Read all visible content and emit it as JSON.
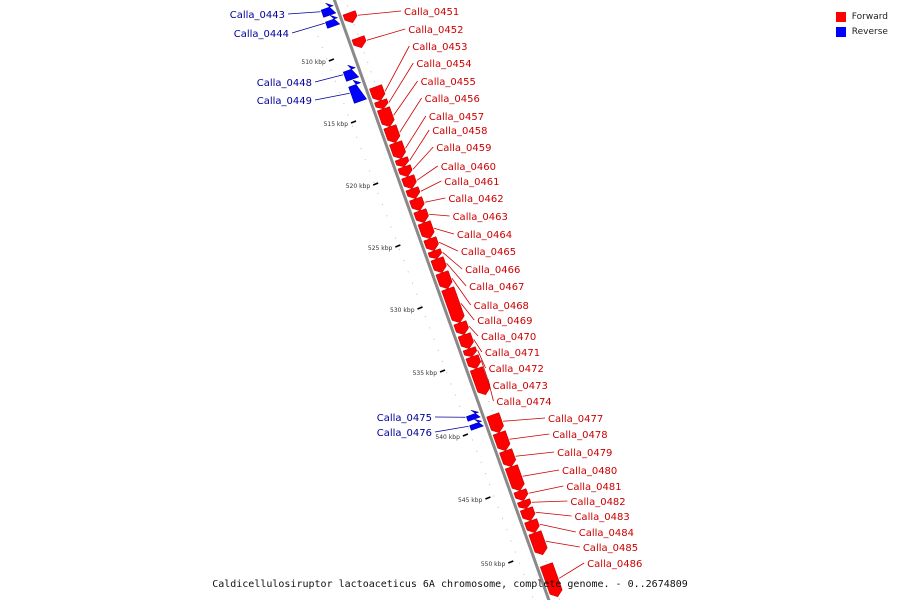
{
  "legend": {
    "forward_label": "Forward",
    "reverse_label": "Reverse",
    "forward_color": "#ff0000",
    "reverse_color": "#0000ff"
  },
  "caption": "Caldicellulosiruptor lactoaceticus 6A chromosome, complete genome. - 0..2674809",
  "colors": {
    "backbone": "#8a8a8a",
    "forward_label_text": "#cc0000",
    "reverse_label_text": "#000099",
    "tick": "#000000"
  },
  "ticks": [
    "510 kbp",
    "515 kbp",
    "520 kbp",
    "525 kbp",
    "530 kbp",
    "535 kbp",
    "540 kbp",
    "545 kbp",
    "550 kbp"
  ],
  "genes": [
    {
      "id": "Calla_0443",
      "strand": "reverse"
    },
    {
      "id": "Calla_0444",
      "strand": "reverse"
    },
    {
      "id": "Calla_0448",
      "strand": "reverse"
    },
    {
      "id": "Calla_0449",
      "strand": "reverse"
    },
    {
      "id": "Calla_0451",
      "strand": "forward"
    },
    {
      "id": "Calla_0452",
      "strand": "forward"
    },
    {
      "id": "Calla_0453",
      "strand": "forward"
    },
    {
      "id": "Calla_0454",
      "strand": "forward"
    },
    {
      "id": "Calla_0455",
      "strand": "forward"
    },
    {
      "id": "Calla_0456",
      "strand": "forward"
    },
    {
      "id": "Calla_0457",
      "strand": "forward"
    },
    {
      "id": "Calla_0458",
      "strand": "forward"
    },
    {
      "id": "Calla_0459",
      "strand": "forward"
    },
    {
      "id": "Calla_0460",
      "strand": "forward"
    },
    {
      "id": "Calla_0461",
      "strand": "forward"
    },
    {
      "id": "Calla_0462",
      "strand": "forward"
    },
    {
      "id": "Calla_0463",
      "strand": "forward"
    },
    {
      "id": "Calla_0464",
      "strand": "forward"
    },
    {
      "id": "Calla_0465",
      "strand": "forward"
    },
    {
      "id": "Calla_0466",
      "strand": "forward"
    },
    {
      "id": "Calla_0467",
      "strand": "forward"
    },
    {
      "id": "Calla_0468",
      "strand": "forward"
    },
    {
      "id": "Calla_0469",
      "strand": "forward"
    },
    {
      "id": "Calla_0470",
      "strand": "forward"
    },
    {
      "id": "Calla_0471",
      "strand": "forward"
    },
    {
      "id": "Calla_0472",
      "strand": "forward"
    },
    {
      "id": "Calla_0473",
      "strand": "forward"
    },
    {
      "id": "Calla_0474",
      "strand": "forward"
    },
    {
      "id": "Calla_0475",
      "strand": "reverse"
    },
    {
      "id": "Calla_0476",
      "strand": "reverse"
    },
    {
      "id": "Calla_0477",
      "strand": "forward"
    },
    {
      "id": "Calla_0478",
      "strand": "forward"
    },
    {
      "id": "Calla_0479",
      "strand": "forward"
    },
    {
      "id": "Calla_0480",
      "strand": "forward"
    },
    {
      "id": "Calla_0481",
      "strand": "forward"
    },
    {
      "id": "Calla_0482",
      "strand": "forward"
    },
    {
      "id": "Calla_0483",
      "strand": "forward"
    },
    {
      "id": "Calla_0484",
      "strand": "forward"
    },
    {
      "id": "Calla_0485",
      "strand": "forward"
    },
    {
      "id": "Calla_0486",
      "strand": "forward"
    }
  ]
}
